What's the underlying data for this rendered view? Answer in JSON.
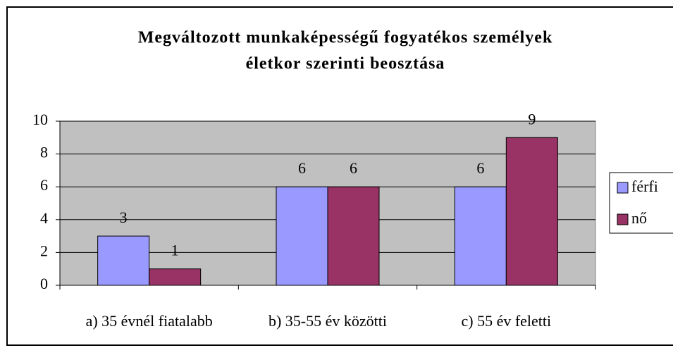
{
  "chart_data": {
    "type": "bar",
    "title": [
      "Megváltozott munkaképességű fogyatékos személyek",
      "életkor szerinti beosztása"
    ],
    "categories": [
      "a) 35 évnél fiatalabb",
      "b) 35-55 év közötti",
      "c) 55 év feletti"
    ],
    "series": [
      {
        "name": "férfi",
        "color": "#9999ff",
        "values": [
          3,
          6,
          6
        ]
      },
      {
        "name": "nő",
        "color": "#993366",
        "values": [
          1,
          6,
          9
        ]
      }
    ],
    "ylim": [
      0,
      10
    ],
    "yticks": [
      0,
      2,
      4,
      6,
      8,
      10
    ],
    "grid": true,
    "legend": "right"
  }
}
